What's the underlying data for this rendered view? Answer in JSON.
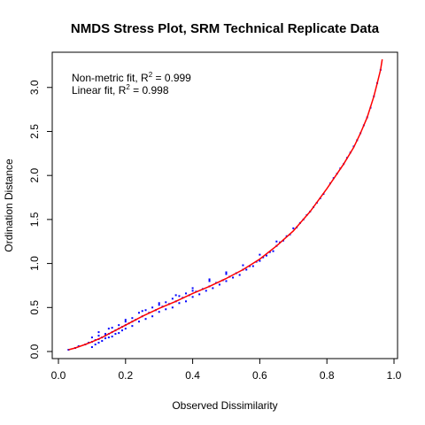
{
  "chart_data": {
    "type": "scatter",
    "title": "NMDS Stress Plot, SRM Technical Replicate Data",
    "xlabel": "Observed Dissimilarity",
    "ylabel": "Ordination Distance",
    "xlim": [
      0.0,
      1.0
    ],
    "ylim": [
      0.0,
      3.3
    ],
    "x_ticks": [
      "0.0",
      "0.2",
      "0.4",
      "0.6",
      "0.8",
      "1.0"
    ],
    "y_ticks": [
      "0.0",
      "0.5",
      "1.0",
      "1.5",
      "2.0",
      "2.5",
      "3.0"
    ],
    "grid": false,
    "legend": {
      "placement": "top-left",
      "entries": [
        {
          "prefix": "Non-metric fit, R",
          "sup": "2",
          "suffix": " = 0.999"
        },
        {
          "prefix": "Linear fit, R",
          "sup": "2",
          "suffix": " = 0.998"
        }
      ]
    },
    "colors": {
      "points": "#0000ff",
      "fit_line": "#ff0000"
    },
    "fit_curve": {
      "name": "",
      "x": [
        0.03,
        0.05,
        0.08,
        0.1,
        0.13,
        0.15,
        0.2,
        0.25,
        0.3,
        0.35,
        0.4,
        0.45,
        0.5,
        0.55,
        0.6,
        0.65,
        0.7,
        0.75,
        0.8,
        0.85,
        0.88,
        0.9,
        0.92,
        0.94,
        0.95,
        0.96,
        0.965
      ],
      "y": [
        0.02,
        0.04,
        0.08,
        0.11,
        0.16,
        0.2,
        0.3,
        0.4,
        0.49,
        0.57,
        0.66,
        0.74,
        0.83,
        0.93,
        1.05,
        1.2,
        1.37,
        1.59,
        1.85,
        2.13,
        2.32,
        2.48,
        2.66,
        2.9,
        3.05,
        3.2,
        3.32
      ]
    },
    "scatter_points": {
      "x": [
        0.03,
        0.05,
        0.06,
        0.08,
        0.09,
        0.1,
        0.11,
        0.12,
        0.13,
        0.14,
        0.15,
        0.16,
        0.17,
        0.18,
        0.19,
        0.2,
        0.21,
        0.22,
        0.23,
        0.25,
        0.27,
        0.29,
        0.31,
        0.33,
        0.35,
        0.37,
        0.39,
        0.41,
        0.43,
        0.45,
        0.47,
        0.49,
        0.51,
        0.53,
        0.55,
        0.57,
        0.59,
        0.61,
        0.63,
        0.65,
        0.67,
        0.69,
        0.71,
        0.73,
        0.75,
        0.77,
        0.79,
        0.81,
        0.83,
        0.85,
        0.87,
        0.89,
        0.9,
        0.91,
        0.92,
        0.93,
        0.94,
        0.95,
        0.96,
        0.1,
        0.11,
        0.12,
        0.13,
        0.14,
        0.15,
        0.16,
        0.17,
        0.18,
        0.19,
        0.2,
        0.22,
        0.24,
        0.26,
        0.28,
        0.3,
        0.32,
        0.34,
        0.36,
        0.38,
        0.4,
        0.42,
        0.44,
        0.46,
        0.48,
        0.5,
        0.52,
        0.54,
        0.56,
        0.58,
        0.6,
        0.62,
        0.64,
        0.66,
        0.68,
        0.7,
        0.1,
        0.12,
        0.14,
        0.16,
        0.18,
        0.2,
        0.22,
        0.24,
        0.26,
        0.28,
        0.3,
        0.32,
        0.34,
        0.36,
        0.38,
        0.4,
        0.45,
        0.5,
        0.55,
        0.6,
        0.65,
        0.12,
        0.15,
        0.2,
        0.25,
        0.3,
        0.35,
        0.4,
        0.45,
        0.5,
        0.72,
        0.74,
        0.76,
        0.78,
        0.82,
        0.84,
        0.86,
        0.88
      ],
      "y": [
        0.02,
        0.04,
        0.06,
        0.08,
        0.1,
        0.11,
        0.13,
        0.14,
        0.16,
        0.18,
        0.2,
        0.22,
        0.24,
        0.26,
        0.28,
        0.3,
        0.32,
        0.34,
        0.36,
        0.4,
        0.44,
        0.47,
        0.51,
        0.54,
        0.57,
        0.61,
        0.64,
        0.68,
        0.71,
        0.74,
        0.78,
        0.81,
        0.85,
        0.89,
        0.93,
        0.97,
        1.02,
        1.07,
        1.13,
        1.2,
        1.26,
        1.33,
        1.41,
        1.5,
        1.59,
        1.69,
        1.79,
        1.91,
        2.02,
        2.13,
        2.26,
        2.4,
        2.48,
        2.57,
        2.66,
        2.77,
        2.9,
        3.05,
        3.2,
        0.05,
        0.08,
        0.1,
        0.12,
        0.15,
        0.16,
        0.17,
        0.2,
        0.21,
        0.24,
        0.26,
        0.29,
        0.34,
        0.37,
        0.4,
        0.45,
        0.48,
        0.5,
        0.55,
        0.57,
        0.62,
        0.65,
        0.69,
        0.72,
        0.76,
        0.8,
        0.84,
        0.87,
        0.93,
        0.97,
        1.03,
        1.09,
        1.14,
        1.24,
        1.31,
        1.4,
        0.16,
        0.18,
        0.2,
        0.27,
        0.3,
        0.34,
        0.38,
        0.44,
        0.47,
        0.5,
        0.53,
        0.56,
        0.6,
        0.63,
        0.66,
        0.69,
        0.8,
        0.88,
        0.98,
        1.1,
        1.25,
        0.22,
        0.26,
        0.36,
        0.46,
        0.55,
        0.64,
        0.72,
        0.82,
        0.9,
        1.46,
        1.55,
        1.64,
        1.74,
        1.97,
        2.08,
        2.2,
        2.33
      ]
    }
  }
}
